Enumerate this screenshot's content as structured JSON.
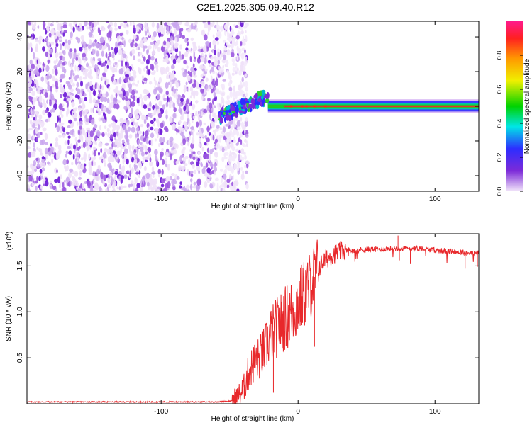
{
  "title": "C2E1.2025.305.09.40.R12",
  "chart_data": [
    {
      "type": "heatmap",
      "xlabel": "Height of straight line (km)",
      "ylabel": "Frequency (Hz)",
      "xlim": [
        -198,
        132
      ],
      "ylim": [
        -49,
        49
      ],
      "x_ticks": [
        -100,
        0,
        100
      ],
      "x_tick_labels": [
        "-100",
        "0",
        "100"
      ],
      "y_ticks": [
        -40,
        -20,
        0,
        20,
        40
      ],
      "y_tick_labels": [
        "-40",
        "-20",
        "0",
        "20",
        "40"
      ],
      "colorbar": {
        "label": "Normalized spectral amplitude",
        "range": [
          0,
          1
        ],
        "ticks": [
          0.0,
          0.2,
          0.4,
          0.6,
          0.8
        ],
        "tick_labels": [
          "0.0",
          "0.2",
          "0.4",
          "0.6",
          "0.8"
        ],
        "colormap": [
          "#f2e6fa",
          "#7d2bd8",
          "#2d2dff",
          "#00e6e6",
          "#00d200",
          "#f0f000",
          "#ff9900",
          "#ff2020",
          "#ff1a8c"
        ]
      },
      "features": {
        "noise_region_x": [
          -198,
          -45
        ],
        "transition_x": [
          -57,
          -22
        ],
        "transition_freq": [
          -6,
          8
        ],
        "carrier_start_x": -22,
        "carrier_freq": 0,
        "carrier_half_width_hz": 3,
        "bright_blobs_x": [
          -5,
          3,
          6,
          12,
          20
        ]
      }
    },
    {
      "type": "line",
      "xlabel": "Height of straight line (km)",
      "ylabel": "SNR (10 * v/v)",
      "y_multiplier": "(x10",
      "y_multiplier_exp": "4",
      "y_multiplier_close": ")",
      "xlim": [
        -198,
        132
      ],
      "ylim": [
        0,
        1.85
      ],
      "x_ticks": [
        -100,
        0,
        100
      ],
      "x_tick_labels": [
        "-100",
        "0",
        "100"
      ],
      "y_ticks": [
        0.5,
        1.0,
        1.5
      ],
      "y_tick_labels": [
        "0.5",
        "1.0",
        "1.5"
      ],
      "color": "#e8282b",
      "series": [
        {
          "x": [
            -198,
            -150,
            -100,
            -60,
            -48,
            -44,
            -40,
            -36,
            -32,
            -28,
            -24,
            -20,
            -16,
            -12,
            -8,
            -4,
            0,
            4,
            8,
            12,
            16,
            20,
            25,
            30,
            35,
            40,
            50,
            60,
            70,
            80,
            90,
            100,
            110,
            120,
            128,
            132
          ],
          "y": [
            0.02,
            0.02,
            0.02,
            0.02,
            0.03,
            0.08,
            0.15,
            0.35,
            0.45,
            0.5,
            0.6,
            0.75,
            0.82,
            0.88,
            0.95,
            1.0,
            1.1,
            1.18,
            1.27,
            1.38,
            1.5,
            1.57,
            1.62,
            1.65,
            1.67,
            1.67,
            1.68,
            1.68,
            1.69,
            1.69,
            1.69,
            1.67,
            1.66,
            1.65,
            1.64,
            1.64
          ]
        }
      ],
      "spikes": [
        {
          "x": 73,
          "y": 1.83
        },
        {
          "x": 74,
          "y": 1.56
        },
        {
          "x": 82,
          "y": 1.52
        },
        {
          "x": 122,
          "y": 1.47
        },
        {
          "x": 131,
          "y": 1.49
        },
        {
          "x": 12,
          "y": 0.62
        },
        {
          "x": -18,
          "y": 0.12
        }
      ]
    }
  ]
}
